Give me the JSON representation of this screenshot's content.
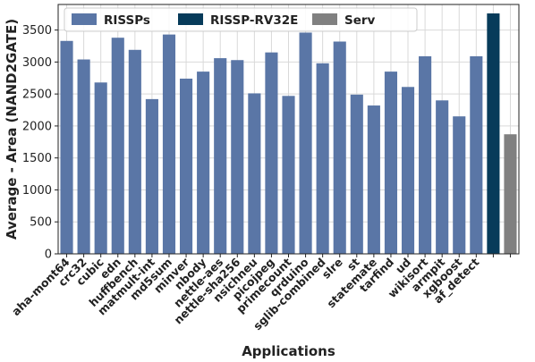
{
  "chart_data": {
    "type": "bar",
    "xlabel": "Applications",
    "ylabel": "Average - Area (NAND2GATE)",
    "ylim": [
      0,
      3900
    ],
    "yticks": [
      0,
      500,
      1000,
      1500,
      2000,
      2500,
      3000,
      3500
    ],
    "grid": true,
    "legend_position": "top",
    "categories": [
      "aha-mont64",
      "crc32",
      "cubic",
      "edn",
      "huffbench",
      "matmult-int",
      "md5sum",
      "minver",
      "nbody",
      "nettle-aes",
      "nettle-sha256",
      "nsichneu",
      "picojpeg",
      "primecount",
      "qrduino",
      "sglib-combined",
      "slre",
      "st",
      "statemate",
      "tarfind",
      "ud",
      "wikisort",
      "armpit",
      "xgboost",
      "af_detect",
      "",
      ""
    ],
    "series": [
      {
        "name": "RISSPs",
        "color": "#5a76a6",
        "values": [
          3330,
          3040,
          2680,
          3380,
          3190,
          2420,
          3430,
          2740,
          2850,
          3060,
          3030,
          2510,
          3150,
          2470,
          3460,
          2980,
          3320,
          2490,
          2320,
          2850,
          2610,
          3090,
          2400,
          2150,
          3090,
          null,
          null
        ]
      },
      {
        "name": "RISSP-RV32E",
        "color": "#073b5a",
        "values": [
          null,
          null,
          null,
          null,
          null,
          null,
          null,
          null,
          null,
          null,
          null,
          null,
          null,
          null,
          null,
          null,
          null,
          null,
          null,
          null,
          null,
          null,
          null,
          null,
          null,
          3760,
          null
        ]
      },
      {
        "name": "Serv",
        "color": "#808080",
        "values": [
          null,
          null,
          null,
          null,
          null,
          null,
          null,
          null,
          null,
          null,
          null,
          null,
          null,
          null,
          null,
          null,
          null,
          null,
          null,
          null,
          null,
          null,
          null,
          null,
          null,
          null,
          1870
        ]
      }
    ]
  }
}
